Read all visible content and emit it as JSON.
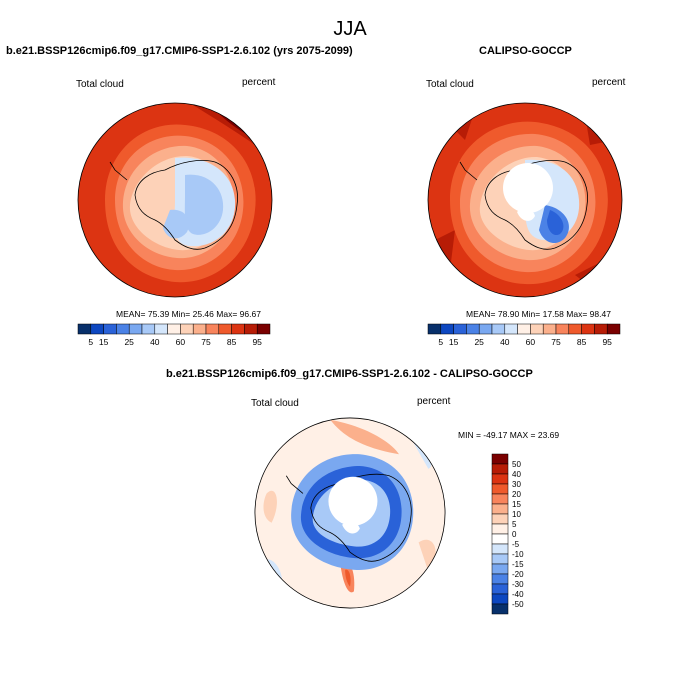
{
  "figure": {
    "title": "JJA"
  },
  "chart_data": [
    {
      "type": "heatmap",
      "projection": "south-polar-stereographic",
      "title": "b.e21.BSSP126cmip6.f09_g17.CMIP6-SSP1-2.6.102 (yrs 2075-2099)",
      "left_label": "Total cloud",
      "right_label": "percent",
      "stats": {
        "mean_label": "MEAN=",
        "mean": "75.39",
        "min_label": "Min=",
        "min": "25.46",
        "max_label": "Max=",
        "max": "96.67"
      },
      "field": {
        "ocean_base": 90,
        "ocean_far": 95,
        "ice_sheet": 30,
        "coast_band": 55
      },
      "colorbar": {
        "orientation": "horizontal",
        "colors": [
          "#08306b",
          "#0d47c0",
          "#2a62d8",
          "#4b82e6",
          "#7aa8f0",
          "#a8c9f7",
          "#d4e6fb",
          "#fff0e6",
          "#fdd2b8",
          "#fbb08c",
          "#f8845c",
          "#ef5a2c",
          "#dc3412",
          "#b71c06",
          "#7a0000"
        ],
        "tick_labels": [
          "5",
          "15",
          "25",
          "40",
          "60",
          "75",
          "85",
          "95"
        ]
      }
    },
    {
      "type": "heatmap",
      "projection": "south-polar-stereographic",
      "title": "CALIPSO-GOCCP",
      "left_label": "Total cloud",
      "right_label": "percent",
      "stats": {
        "mean_label": "MEAN=",
        "mean": "78.90",
        "min_label": "Min=",
        "min": "17.58",
        "max_label": "Max=",
        "max": "98.47"
      },
      "field": {
        "ocean_base": 82,
        "ocean_far": 90,
        "ice_sheet": 35,
        "coast_band": 60
      },
      "colorbar": {
        "orientation": "horizontal",
        "colors": [
          "#08306b",
          "#0d47c0",
          "#2a62d8",
          "#4b82e6",
          "#7aa8f0",
          "#a8c9f7",
          "#d4e6fb",
          "#fff0e6",
          "#fdd2b8",
          "#fbb08c",
          "#f8845c",
          "#ef5a2c",
          "#dc3412",
          "#b71c06",
          "#7a0000"
        ],
        "tick_labels": [
          "5",
          "15",
          "25",
          "40",
          "60",
          "75",
          "85",
          "95"
        ]
      }
    },
    {
      "type": "heatmap",
      "projection": "south-polar-stereographic",
      "title": "b.e21.BSSP126cmip6.f09_g17.CMIP6-SSP1-2.6.102 - CALIPSO-GOCCP",
      "left_label": "Total cloud",
      "right_label": "percent",
      "stats": {
        "text": "MIN = -49.17 MAX =  23.69"
      },
      "field": {
        "ocean_base": 5,
        "coast_band": -30,
        "ice_sheet": -8
      },
      "colorbar": {
        "orientation": "vertical",
        "colors": [
          "#7a0000",
          "#b71c06",
          "#dc3412",
          "#ef5a2c",
          "#f8845c",
          "#fbb08c",
          "#fdd2b8",
          "#fff0e6",
          "#ffffff",
          "#d4e6fb",
          "#a8c9f7",
          "#7aa8f0",
          "#4b82e6",
          "#2a62d8",
          "#0d47c0",
          "#08306b"
        ],
        "tick_labels": [
          "50",
          "40",
          "30",
          "20",
          "15",
          "10",
          "5",
          "0",
          "-5",
          "-10",
          "-15",
          "-20",
          "-30",
          "-40",
          "-50"
        ]
      }
    }
  ]
}
